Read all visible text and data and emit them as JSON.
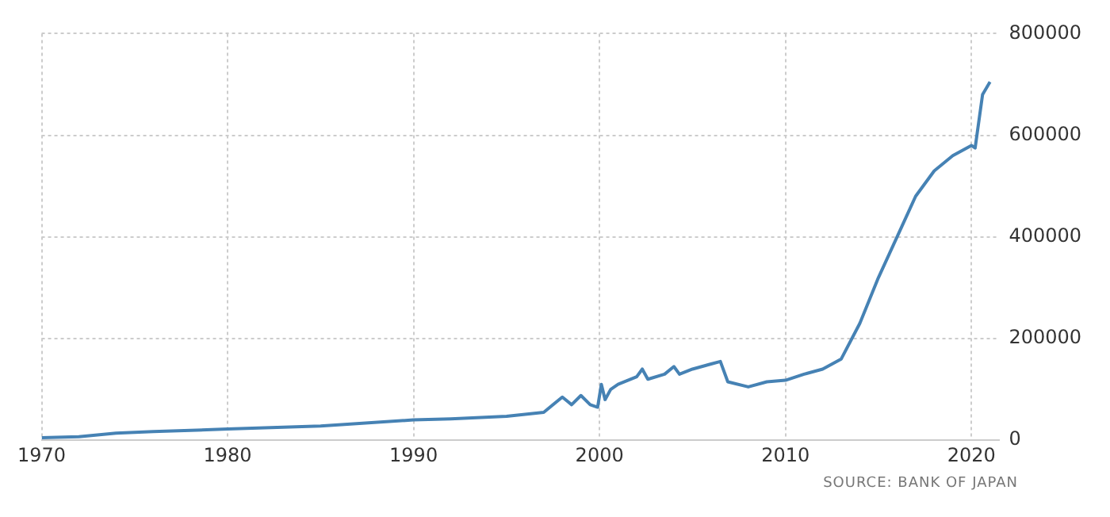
{
  "chart_data": {
    "type": "line",
    "x": [
      1970,
      1972,
      1974,
      1976,
      1980,
      1985,
      1990,
      1992,
      1995,
      1997,
      1998,
      1998.5,
      1999,
      1999.5,
      1999.9,
      2000.1,
      2000.3,
      2000.6,
      2001,
      2002,
      2002.3,
      2002.6,
      2003.5,
      2004,
      2004.3,
      2005,
      2006,
      2006.5,
      2006.9,
      2008,
      2009,
      2010,
      2011,
      2012,
      2013,
      2014,
      2015,
      2016,
      2017,
      2018,
      2019,
      2020,
      2020.2,
      2020.6,
      2021
    ],
    "series": [
      {
        "color": "#4682b4",
        "values": [
          5000,
          7000,
          14000,
          17000,
          22000,
          28000,
          40000,
          42000,
          47000,
          55000,
          85000,
          70000,
          88000,
          70000,
          65000,
          110000,
          80000,
          100000,
          110000,
          125000,
          140000,
          120000,
          130000,
          145000,
          130000,
          140000,
          150000,
          155000,
          115000,
          105000,
          115000,
          118000,
          130000,
          140000,
          160000,
          230000,
          320000,
          400000,
          480000,
          530000,
          560000,
          580000,
          575000,
          680000,
          705000
        ]
      }
    ],
    "xlim": [
      1970,
      2021.5
    ],
    "xticks": [
      1970,
      1980,
      1990,
      2000,
      2010,
      2020
    ],
    "ylim": [
      0,
      800000
    ],
    "yticks": [
      0,
      200000,
      400000,
      600000,
      800000
    ],
    "grid": true,
    "legend": false,
    "marker": "none",
    "line_style": "solid",
    "annotations": [
      "SOURCE: BANK OF JAPAN"
    ]
  }
}
